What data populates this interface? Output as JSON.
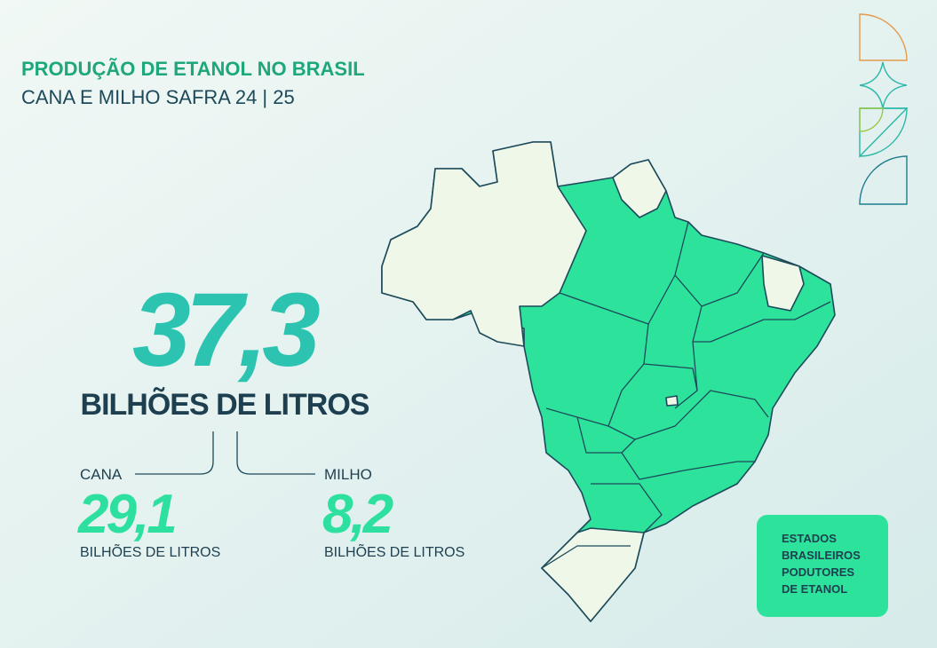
{
  "header": {
    "title": "PRODUÇÃO DE ETANOL NO BRASIL",
    "subtitle": "CANA E MILHO SAFRA 24 | 25"
  },
  "total": {
    "value": "37,3",
    "unit": "BILHÕES DE LITROS"
  },
  "breakdown": [
    {
      "label": "CANA",
      "value": "29,1",
      "unit": "BILHÕES DE LITROS"
    },
    {
      "label": "MILHO",
      "value": "8,2",
      "unit": "BILHÕES DE LITROS"
    }
  ],
  "legend": {
    "lines": [
      "ESTADOS",
      "BRASILEIROS",
      "PODUTORES",
      "DE ETANOL"
    ]
  }
}
